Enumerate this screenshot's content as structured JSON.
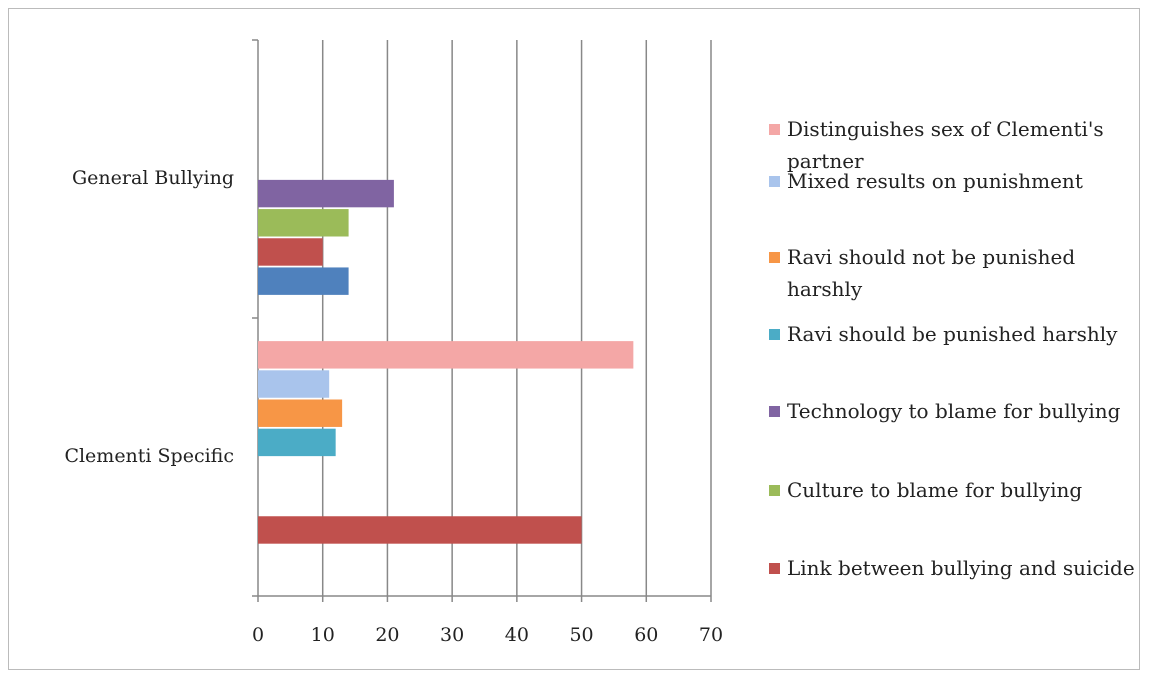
{
  "chart_data": {
    "type": "barh",
    "categories": [
      "General Bullying",
      "Clementi Specific"
    ],
    "series": [
      {
        "name": null,
        "color": "#4f81bd",
        "values": [
          14,
          null
        ]
      },
      {
        "name": "Link between bullying and suicide",
        "color": "#c0504d",
        "values": [
          10,
          50
        ]
      },
      {
        "name": "Culture to blame for bullying",
        "color": "#9bbb59",
        "values": [
          14,
          null
        ]
      },
      {
        "name": "Technology to blame for bullying",
        "color": "#8064a2",
        "values": [
          21,
          null
        ]
      },
      {
        "name": "Ravi should be punished harshly",
        "color": "#4bacc6",
        "values": [
          null,
          12
        ]
      },
      {
        "name": "Ravi should not be punished harshly",
        "color": "#f79646",
        "values": [
          null,
          13
        ]
      },
      {
        "name": "Mixed results on punishment",
        "color": "#a9c4ec",
        "values": [
          null,
          11
        ]
      },
      {
        "name": "Distinguishes sex of Clementi's partner",
        "color": "#f4a7a6",
        "values": [
          null,
          58
        ]
      }
    ],
    "xlim": [
      0,
      70
    ],
    "xticks": [
      0,
      10,
      20,
      30,
      40,
      50,
      60,
      70
    ],
    "grid": true,
    "legend": "right"
  }
}
